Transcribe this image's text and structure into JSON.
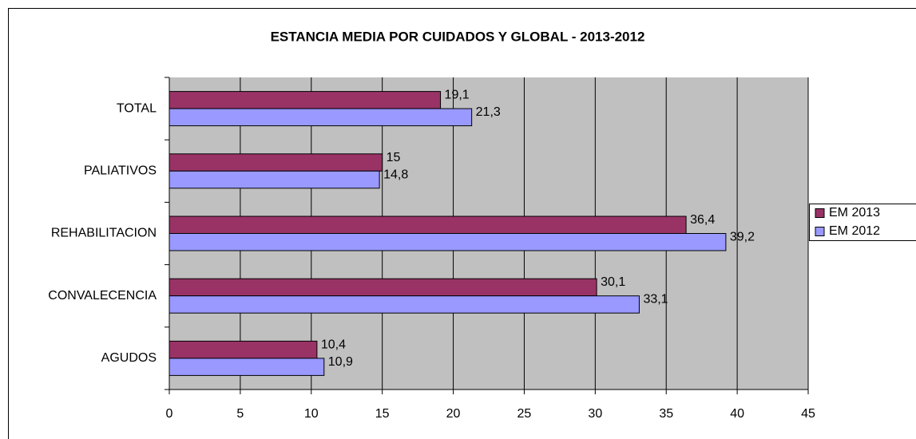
{
  "chart_data": {
    "type": "hbar",
    "title": "ESTANCIA MEDIA POR CUIDADOS Y GLOBAL - 2013-2012",
    "categories": [
      "TOTAL",
      "PALIATIVOS",
      "REHABILITACION",
      "CONVALECENCIA",
      "AGUDOS"
    ],
    "series": [
      {
        "name": "EM 2013",
        "color": "#993366",
        "values": [
          19.1,
          15,
          36.4,
          30.1,
          10.4
        ],
        "value_labels": [
          "19,1",
          "15",
          "36,4",
          "30,1",
          "10,4"
        ]
      },
      {
        "name": "EM 2012",
        "color": "#9999ff",
        "values": [
          21.3,
          14.8,
          39.2,
          33.1,
          10.9
        ],
        "value_labels": [
          "21,3",
          "14,8",
          "39,2",
          "33,1",
          "10,9"
        ]
      }
    ],
    "xlim": [
      0,
      45
    ],
    "xticks": [
      0,
      5,
      10,
      15,
      20,
      25,
      30,
      35,
      40,
      45
    ],
    "grid": true,
    "legend": "right"
  }
}
